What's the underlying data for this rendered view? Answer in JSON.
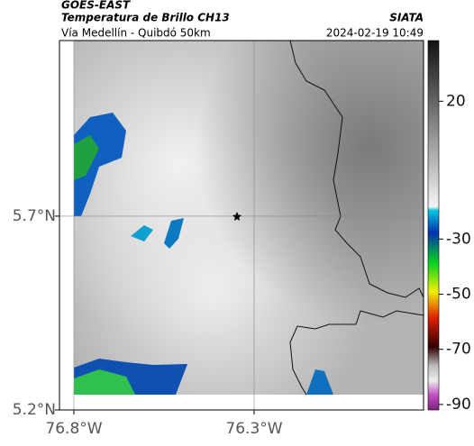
{
  "header": {
    "title": "GOES-EAST",
    "subtitle": "Temperatura de Brillo CH13",
    "location": "Vía Medellín - Quibdó 50km",
    "source": "SIATA",
    "timestamp": "2024-02-19 10:49"
  },
  "map": {
    "xlim": [
      -76.84,
      -75.83
    ],
    "ylim": [
      5.2,
      6.153
    ],
    "xticks": [
      {
        "value": -76.8,
        "label": "76.8°W"
      },
      {
        "value": -76.3,
        "label": "76.3°W"
      }
    ],
    "yticks": [
      {
        "value": 5.7,
        "label": "5.7°N"
      },
      {
        "value": 5.2,
        "label": "5.2°N"
      }
    ],
    "grid": true
  },
  "colorbar": {
    "lim": [
      -92,
      42
    ],
    "ticks": [
      20,
      -30,
      -50,
      -70,
      -90
    ]
  }
}
